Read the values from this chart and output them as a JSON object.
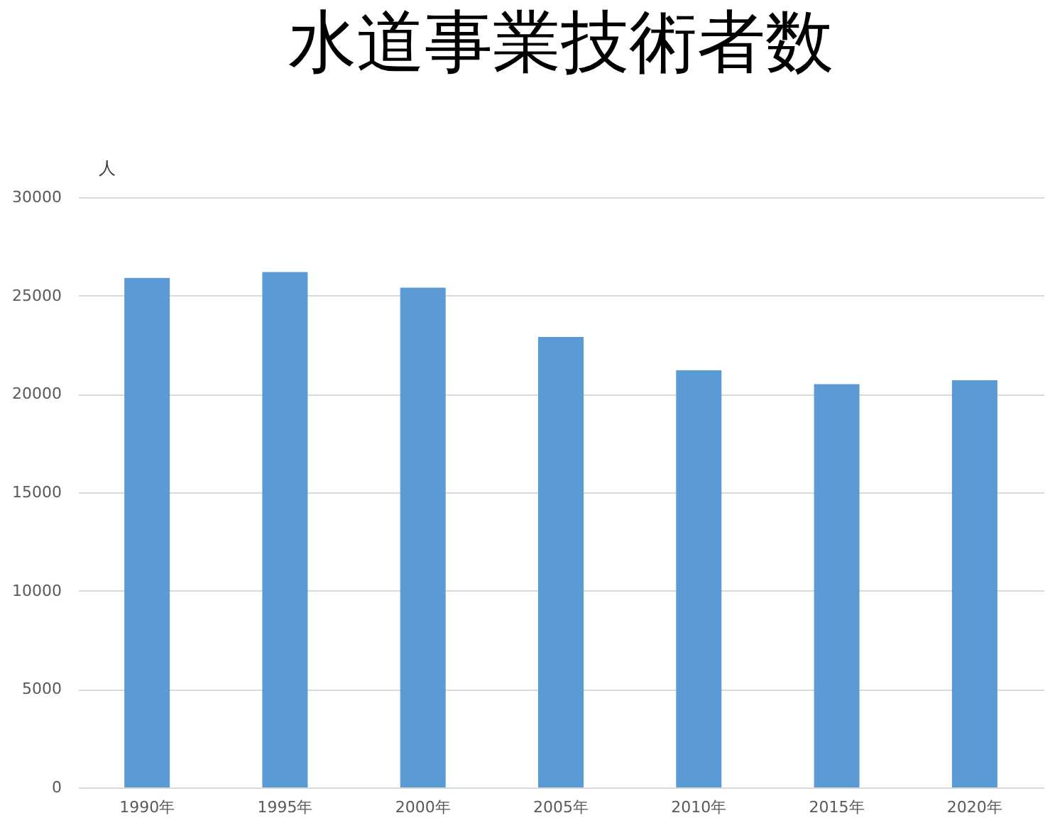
{
  "chart_data": {
    "type": "bar",
    "title": "水道事業技術者数",
    "ylabel": "人",
    "categories": [
      "1990年",
      "1995年",
      "2000年",
      "2005年",
      "2010年",
      "2015年",
      "2020年"
    ],
    "values": [
      25900,
      26200,
      25400,
      22900,
      21200,
      20500,
      20700
    ],
    "color": "#5b9bd5",
    "ylim": [
      0,
      30000
    ],
    "yticks": [
      0,
      5000,
      10000,
      15000,
      20000,
      25000,
      30000
    ],
    "grid": "y"
  }
}
